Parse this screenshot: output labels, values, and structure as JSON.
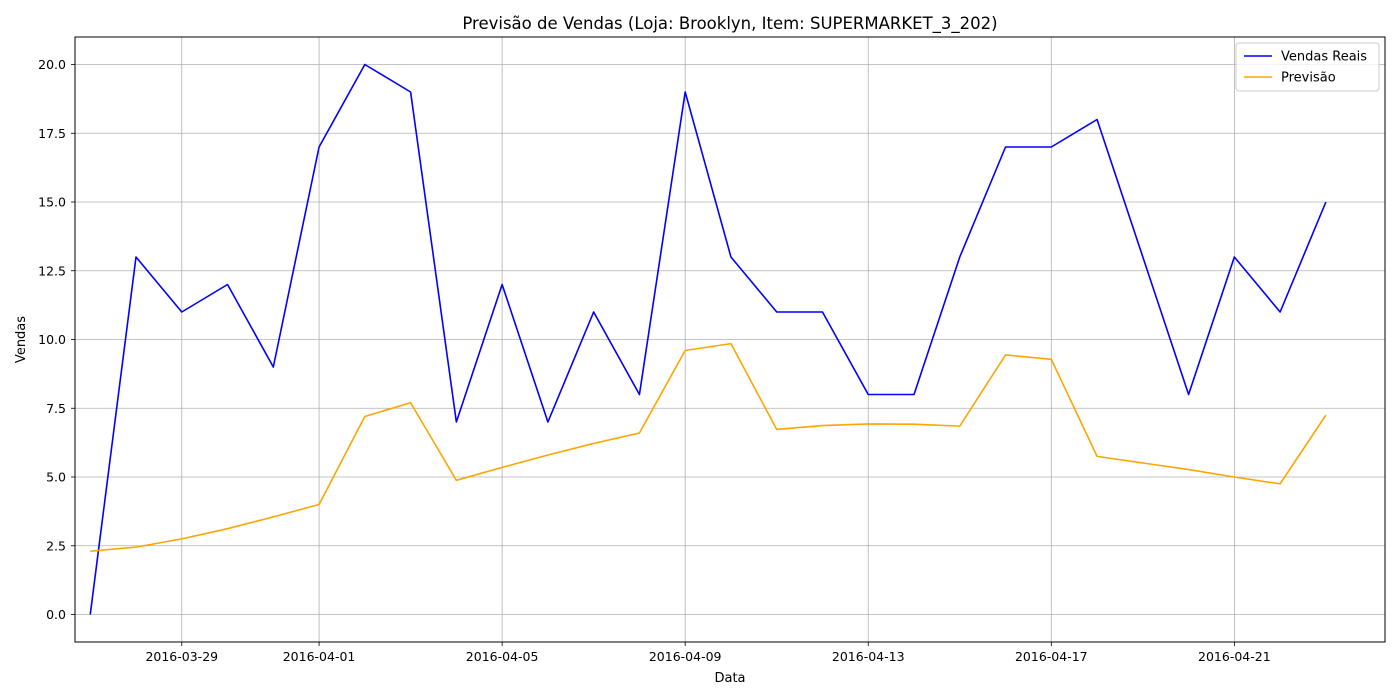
{
  "chart_data": {
    "type": "line",
    "title": "Previsão de Vendas (Loja: Brooklyn, Item: SUPERMARKET_3_202)",
    "xlabel": "Data",
    "ylabel": "Vendas",
    "x": [
      "2016-03-27",
      "2016-03-28",
      "2016-03-29",
      "2016-03-30",
      "2016-03-31",
      "2016-04-01",
      "2016-04-02",
      "2016-04-03",
      "2016-04-04",
      "2016-04-05",
      "2016-04-06",
      "2016-04-07",
      "2016-04-08",
      "2016-04-09",
      "2016-04-10",
      "2016-04-11",
      "2016-04-12",
      "2016-04-13",
      "2016-04-14",
      "2016-04-15",
      "2016-04-16",
      "2016-04-17",
      "2016-04-18",
      "2016-04-20",
      "2016-04-21",
      "2016-04-22",
      "2016-04-23"
    ],
    "xlim": [
      "2016-03-26T16:00",
      "2016-04-24T07:00"
    ],
    "xticks": [
      "2016-03-29",
      "2016-04-01",
      "2016-04-05",
      "2016-04-09",
      "2016-04-13",
      "2016-04-17",
      "2016-04-21"
    ],
    "ylim": [
      -1,
      21
    ],
    "yticks": [
      0.0,
      2.5,
      5.0,
      7.5,
      10.0,
      12.5,
      15.0,
      17.5,
      20.0
    ],
    "ytick_labels": [
      "0.0",
      "2.5",
      "5.0",
      "7.5",
      "10.0",
      "12.5",
      "15.0",
      "17.5",
      "20.0"
    ],
    "grid": true,
    "legend_position": "top-right",
    "series": [
      {
        "name": "Vendas Reais",
        "color": "#0000ff",
        "values": [
          0,
          13,
          11,
          12,
          9,
          17,
          20,
          19,
          7,
          12,
          7,
          11,
          8,
          19,
          13,
          11,
          11,
          8,
          8,
          13,
          17,
          17,
          18,
          8,
          13,
          11,
          15
        ]
      },
      {
        "name": "Previsão",
        "color": "#ffa500",
        "values": [
          2.3,
          2.45,
          2.75,
          3.12,
          3.55,
          4.0,
          7.2,
          7.7,
          4.88,
          5.35,
          5.8,
          6.22,
          6.6,
          9.6,
          9.85,
          6.73,
          6.87,
          6.93,
          6.92,
          6.85,
          9.44,
          9.28,
          5.75,
          5.27,
          5.0,
          4.75,
          7.25
        ]
      }
    ]
  }
}
